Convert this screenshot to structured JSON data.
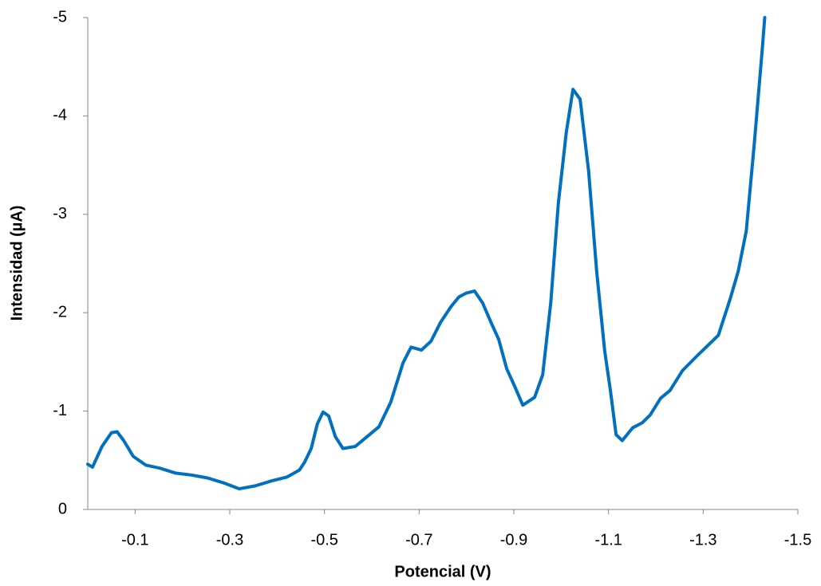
{
  "chart_data": {
    "type": "line",
    "xlabel": "Potencial (V)",
    "ylabel": "Intensidad (µA)",
    "xlim": [
      0,
      -1.5
    ],
    "ylim": [
      0,
      -5
    ],
    "xticks": [
      -0.1,
      -0.3,
      -0.5,
      -0.7,
      -0.9,
      -1.1,
      -1.3,
      -1.5
    ],
    "yticks": [
      0,
      -1,
      -2,
      -3,
      -4,
      -5
    ],
    "grid": false,
    "series": [
      {
        "color": "#0070c0",
        "x": [
          0,
          -0.01,
          -0.03,
          -0.05,
          -0.062,
          -0.076,
          -0.096,
          -0.123,
          -0.152,
          -0.185,
          -0.219,
          -0.253,
          -0.287,
          -0.32,
          -0.354,
          -0.388,
          -0.421,
          -0.447,
          -0.458,
          -0.472,
          -0.485,
          -0.497,
          -0.509,
          -0.523,
          -0.539,
          -0.565,
          -0.59,
          -0.615,
          -0.64,
          -0.666,
          -0.683,
          -0.705,
          -0.725,
          -0.745,
          -0.767,
          -0.784,
          -0.8,
          -0.817,
          -0.834,
          -0.851,
          -0.868,
          -0.885,
          -0.902,
          -0.919,
          -0.944,
          -0.961,
          -0.978,
          -0.994,
          -1.011,
          -1.025,
          -1.04,
          -1.058,
          -1.075,
          -1.092,
          -1.104,
          -1.116,
          -1.129,
          -1.151,
          -1.171,
          -1.188,
          -1.21,
          -1.23,
          -1.256,
          -1.289,
          -1.332,
          -1.357,
          -1.374,
          -1.391,
          -1.408,
          -1.425,
          -1.43
        ],
        "values": [
          -0.46,
          -0.43,
          -0.64,
          -0.78,
          -0.79,
          -0.7,
          -0.54,
          -0.45,
          -0.42,
          -0.37,
          -0.35,
          -0.32,
          -0.27,
          -0.21,
          -0.24,
          -0.29,
          -0.33,
          -0.4,
          -0.48,
          -0.62,
          -0.87,
          -0.99,
          -0.95,
          -0.74,
          -0.62,
          -0.64,
          -0.74,
          -0.84,
          -1.09,
          -1.49,
          -1.65,
          -1.62,
          -1.71,
          -1.9,
          -2.06,
          -2.16,
          -2.2,
          -2.22,
          -2.1,
          -1.91,
          -1.73,
          -1.43,
          -1.25,
          -1.06,
          -1.14,
          -1.37,
          -2.1,
          -3.11,
          -3.84,
          -4.27,
          -4.17,
          -3.44,
          -2.42,
          -1.61,
          -1.21,
          -0.76,
          -0.7,
          -0.83,
          -0.88,
          -0.96,
          -1.13,
          -1.21,
          -1.41,
          -1.57,
          -1.77,
          -2.14,
          -2.42,
          -2.83,
          -3.72,
          -4.69,
          -5.0
        ]
      }
    ]
  }
}
